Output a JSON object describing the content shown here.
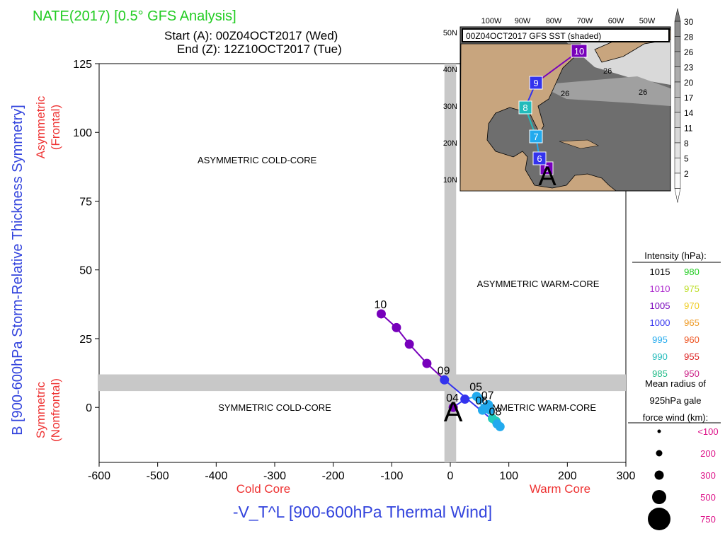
{
  "header": {
    "title": "NATE(2017) [0.5° GFS Analysis]",
    "start": "Start (A): 00Z04OCT2017 (Wed)",
    "end": "End (Z): 12Z10OCT2017 (Tue)",
    "title_color": "#22cc22"
  },
  "chart_data": {
    "type": "scatter",
    "title": "NATE(2017) [0.5° GFS Analysis]",
    "xlabel": "-V_T^L [900-600hPa Thermal Wind]",
    "ylabel": "B [900-600hPa Storm-Relative Thickness Symmetry]",
    "xlim": [
      -600,
      300
    ],
    "ylim": [
      -20,
      125
    ],
    "xticks": [
      -600,
      -500,
      -400,
      -300,
      -200,
      -100,
      0,
      100,
      200,
      300
    ],
    "yticks": [
      0,
      25,
      50,
      75,
      100,
      125
    ],
    "x_side_labels": {
      "left": "Cold Core",
      "right": "Warm Core"
    },
    "y_side_labels": {
      "upper": "Asymmetric\n(Frontal)",
      "lower": "Symmetric\n(Nonfrontal)"
    },
    "quadrant_labels": [
      "ASYMMETRIC COLD-CORE",
      "ASYMMETRIC WARM-CORE",
      "SYMMETRIC COLD-CORE",
      "SYMMETRIC WARM-CORE"
    ],
    "start_marker": "A",
    "track": [
      {
        "x": 5,
        "y": 0,
        "color": "#7700bb",
        "label": "04"
      },
      {
        "x": 25,
        "y": 3,
        "color": "#3333ee",
        "label": ""
      },
      {
        "x": 45,
        "y": 4,
        "color": "#22aaee",
        "label": "05"
      },
      {
        "x": 50,
        "y": 3,
        "color": "#22aaee",
        "label": ""
      },
      {
        "x": 55,
        "y": -1,
        "color": "#22aaee",
        "label": "06"
      },
      {
        "x": 60,
        "y": 0,
        "color": "#22aaee",
        "label": ""
      },
      {
        "x": 65,
        "y": 1,
        "color": "#22aaee",
        "label": "07"
      },
      {
        "x": 68,
        "y": -1,
        "color": "#22aaee",
        "label": ""
      },
      {
        "x": 72,
        "y": -4,
        "color": "#22ccbb",
        "label": ""
      },
      {
        "x": 78,
        "y": -5,
        "color": "#22ccbb",
        "label": "08"
      },
      {
        "x": 85,
        "y": -7,
        "color": "#22aaee",
        "label": ""
      },
      {
        "x": 80,
        "y": -6,
        "color": "#22aaee",
        "label": ""
      },
      {
        "x": -10,
        "y": 10,
        "color": "#3333ee",
        "label": "09"
      },
      {
        "x": -40,
        "y": 16,
        "color": "#7700bb",
        "label": ""
      },
      {
        "x": -70,
        "y": 23,
        "color": "#7700bb",
        "label": ""
      },
      {
        "x": -92,
        "y": 29,
        "color": "#7700bb",
        "label": ""
      },
      {
        "x": -118,
        "y": 34,
        "color": "#7700bb",
        "label": "10"
      }
    ]
  },
  "legend": {
    "intensity_title": "Intensity (hPa):",
    "intensity": [
      {
        "value": "1015",
        "color": "#000000"
      },
      {
        "value": "980",
        "color": "#22cc22"
      },
      {
        "value": "1010",
        "color": "#aa22cc"
      },
      {
        "value": "975",
        "color": "#bbdd22"
      },
      {
        "value": "1005",
        "color": "#7700bb"
      },
      {
        "value": "970",
        "color": "#eecc22"
      },
      {
        "value": "1000",
        "color": "#3333ee"
      },
      {
        "value": "965",
        "color": "#ee9922"
      },
      {
        "value": "995",
        "color": "#22aaee"
      },
      {
        "value": "960",
        "color": "#ee5522"
      },
      {
        "value": "990",
        "color": "#22bbbb"
      },
      {
        "value": "955",
        "color": "#dd2222"
      },
      {
        "value": "985",
        "color": "#22bb88"
      },
      {
        "value": "950",
        "color": "#cc2288"
      }
    ],
    "radius_title_1": "Mean radius of",
    "radius_title_2": "925hPa gale",
    "radius_title_3": "force wind (km):",
    "radius": [
      "<100",
      "200",
      "300",
      "500",
      "750"
    ],
    "radius_color": "#dd1188"
  },
  "inset": {
    "title": "00Z04OCT2017 GFS SST (shaded)",
    "lon_labels": [
      "100W",
      "90W",
      "80W",
      "70W",
      "60W",
      "50W"
    ],
    "lat_labels": [
      "50N",
      "40N",
      "30N",
      "20N",
      "10N"
    ],
    "colorbar": [
      "30",
      "28",
      "26",
      "23",
      "20",
      "17",
      "14",
      "11",
      "8",
      "5",
      "2"
    ],
    "contour_labels": [
      "26",
      "26",
      "26"
    ],
    "start_marker": "A",
    "track_points": [
      {
        "label": "5",
        "color": "#7700bb"
      },
      {
        "label": "6",
        "color": "#3333ee"
      },
      {
        "label": "7",
        "color": "#22aaee"
      },
      {
        "label": "8",
        "color": "#22bbbb"
      },
      {
        "label": "9",
        "color": "#3333ee"
      },
      {
        "label": "10",
        "color": "#7700bb"
      }
    ]
  }
}
